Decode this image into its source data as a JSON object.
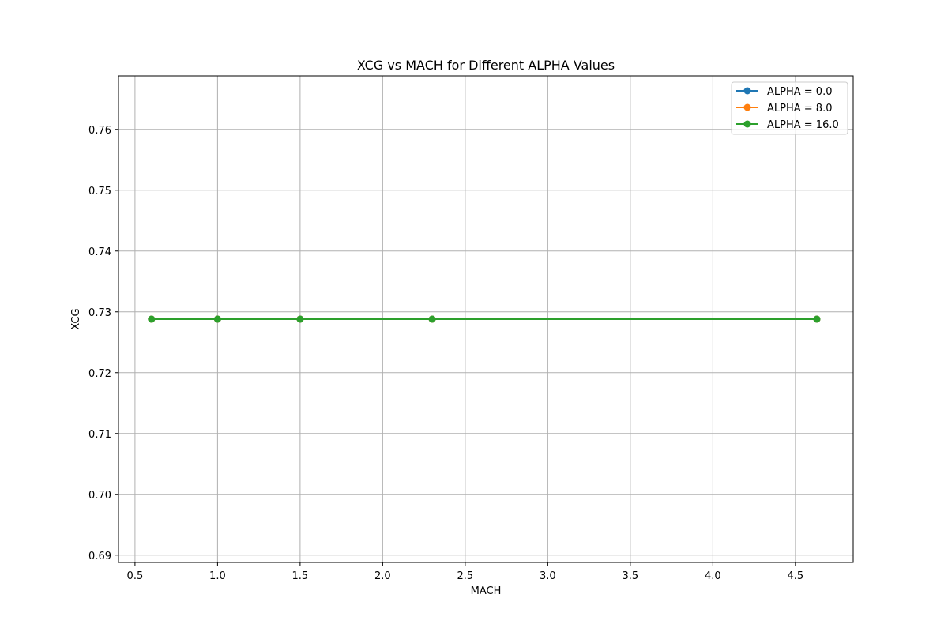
{
  "chart_data": {
    "type": "line",
    "title": "XCG vs MACH for Different ALPHA Values",
    "xlabel": "MACH",
    "ylabel": "XCG",
    "xlim": [
      0.4,
      4.85
    ],
    "ylim": [
      0.6888,
      0.7688
    ],
    "xticks": [
      0.5,
      1.0,
      1.5,
      2.0,
      2.5,
      3.0,
      3.5,
      4.0,
      4.5
    ],
    "xtick_labels": [
      "0.5",
      "1.0",
      "1.5",
      "2.0",
      "2.5",
      "3.0",
      "3.5",
      "4.0",
      "4.5"
    ],
    "yticks": [
      0.69,
      0.7,
      0.71,
      0.72,
      0.73,
      0.74,
      0.75,
      0.76
    ],
    "ytick_labels": [
      "0.69",
      "0.70",
      "0.71",
      "0.72",
      "0.73",
      "0.74",
      "0.75",
      "0.76"
    ],
    "grid": true,
    "legend_position": "top-right",
    "series": [
      {
        "name": "ALPHA = 0.0",
        "color": "#1f77b4",
        "marker": "circle",
        "x": [
          0.6,
          1.0,
          1.5,
          2.3,
          4.63
        ],
        "y": [
          0.7288,
          0.7288,
          0.7288,
          0.7288,
          0.7288
        ]
      },
      {
        "name": "ALPHA = 8.0",
        "color": "#ff7f0e",
        "marker": "circle",
        "x": [
          0.6,
          1.0,
          1.5,
          2.3,
          4.63
        ],
        "y": [
          0.7288,
          0.7288,
          0.7288,
          0.7288,
          0.7288
        ]
      },
      {
        "name": "ALPHA = 16.0",
        "color": "#2ca02c",
        "marker": "circle",
        "x": [
          0.6,
          1.0,
          1.5,
          2.3,
          4.63
        ],
        "y": [
          0.7288,
          0.7288,
          0.7288,
          0.7288,
          0.7288
        ]
      }
    ]
  }
}
